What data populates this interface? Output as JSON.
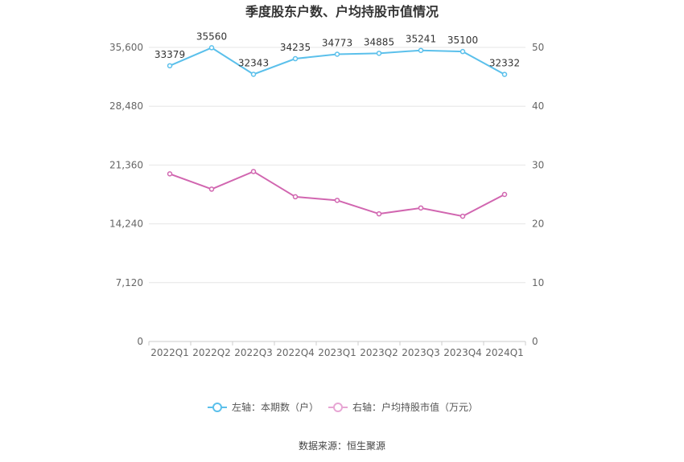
{
  "chart_data": {
    "type": "line",
    "title": "季度股东户数、户均持股市值情况",
    "categories": [
      "2022Q1",
      "2022Q2",
      "2022Q3",
      "2022Q4",
      "2023Q1",
      "2023Q2",
      "2023Q3",
      "2023Q4",
      "2024Q1"
    ],
    "series": [
      {
        "name": "左轴：本期数（户）",
        "axis": "left",
        "color": "#5bc0eb",
        "values": [
          33379,
          35560,
          32343,
          34235,
          34773,
          34885,
          35241,
          35100,
          32332
        ],
        "labels": [
          "33379",
          "35560",
          "32343",
          "34235",
          "34773",
          "34885",
          "35241",
          "35100",
          "32332"
        ]
      },
      {
        "name": "右轴：户均持股市值（万元）",
        "axis": "right",
        "color": "#d166b0",
        "values": [
          28.5,
          25.9,
          28.9,
          24.6,
          24.0,
          21.7,
          22.7,
          21.3,
          25.0
        ]
      }
    ],
    "left_axis": {
      "ylim": [
        0,
        35600
      ],
      "ticks": [
        "0",
        "7,120",
        "14,240",
        "21,360",
        "28,480",
        "35,600"
      ]
    },
    "right_axis": {
      "ylim": [
        0,
        50
      ],
      "ticks": [
        "0",
        "10",
        "20",
        "30",
        "40",
        "50"
      ]
    },
    "grid": true,
    "legend_position": "bottom"
  },
  "source": "数据来源：恒生聚源"
}
